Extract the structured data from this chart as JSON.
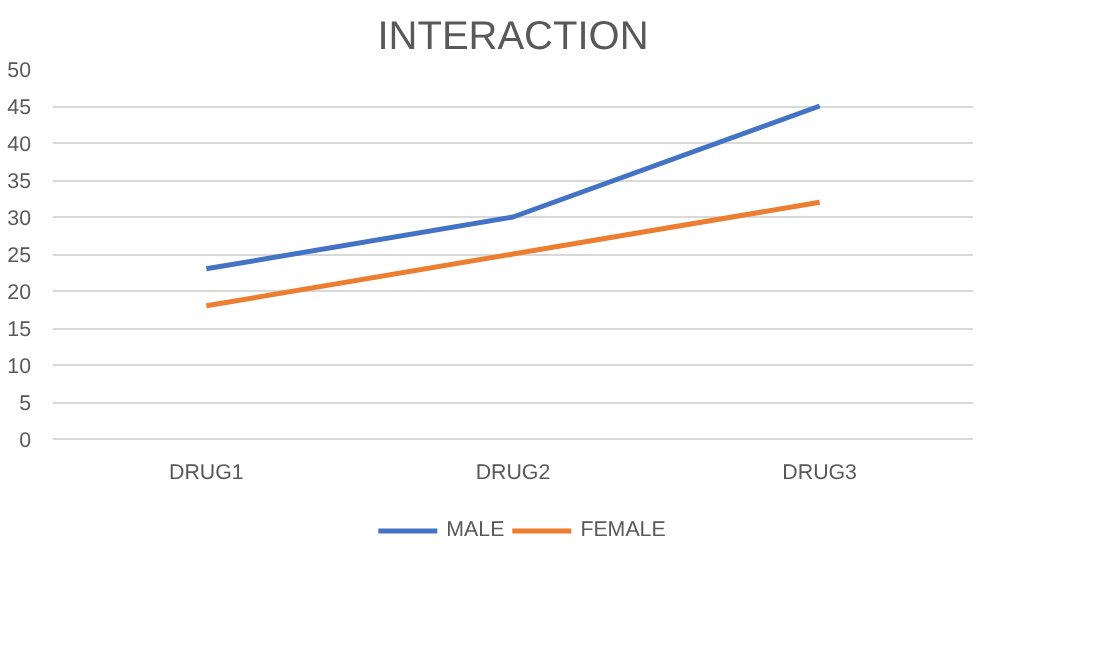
{
  "chart_data": {
    "type": "line",
    "title": "INTERACTION",
    "categories": [
      "DRUG1",
      "DRUG2",
      "DRUG3"
    ],
    "series": [
      {
        "name": "MALE",
        "color": "#4472c4",
        "values": [
          23,
          30,
          45
        ]
      },
      {
        "name": "FEMALE",
        "color": "#ed7d31",
        "values": [
          18,
          25,
          32
        ]
      }
    ],
    "ylim": [
      0,
      50
    ],
    "yticks": [
      0,
      5,
      10,
      15,
      20,
      25,
      30,
      35,
      40,
      45,
      50
    ],
    "grid": "y",
    "legend": "bottom",
    "marker": "none",
    "line_style": "solid"
  }
}
